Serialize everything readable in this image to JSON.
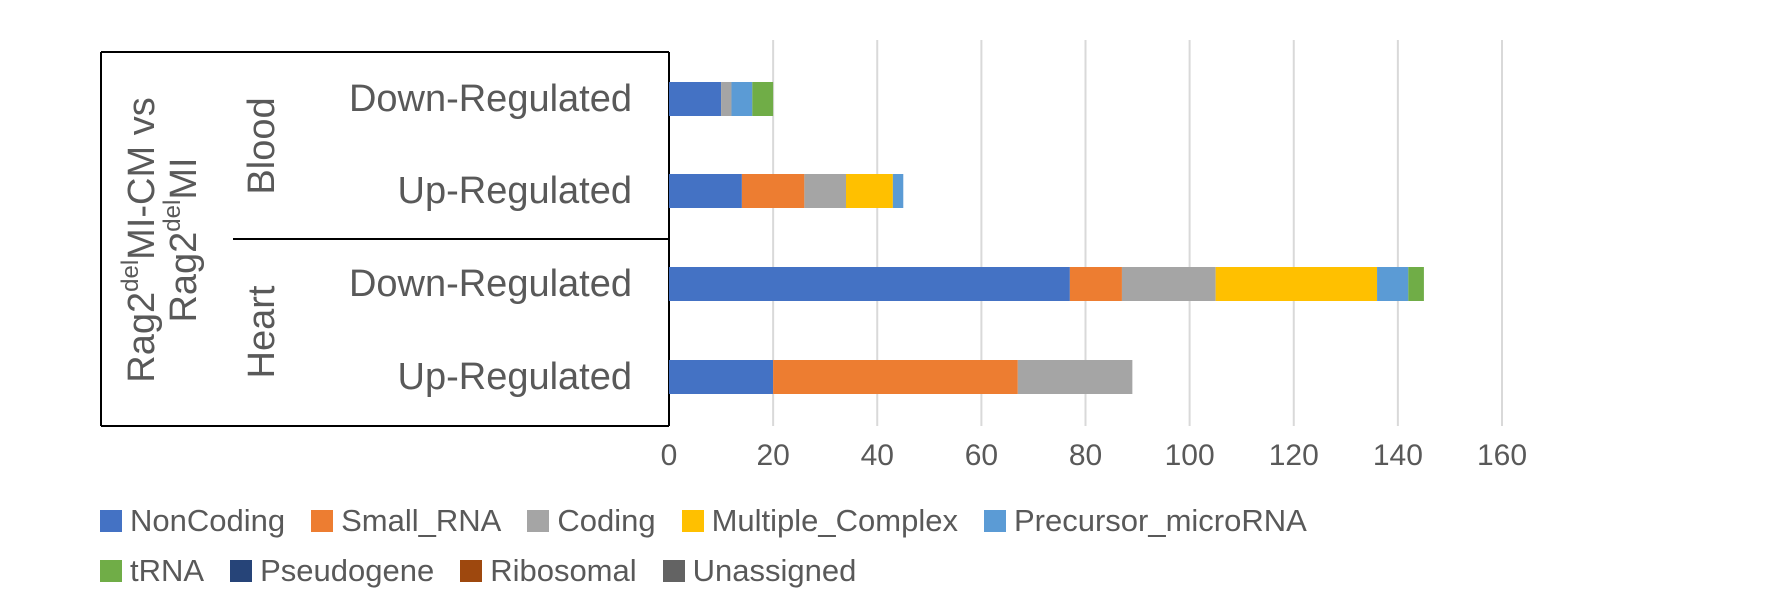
{
  "chart_data": {
    "type": "bar",
    "orientation": "horizontal",
    "stacked": true,
    "group_label": {
      "line1_prefix": "Rag2",
      "line1_sup": "del",
      "line1_suffix": "MI-CM vs",
      "line2_prefix": "Rag2",
      "line2_sup": "del",
      "line2_suffix": "MI"
    },
    "groups": [
      "Blood",
      "Heart"
    ],
    "categories": [
      {
        "label": "Down-Regulated",
        "group": "Blood"
      },
      {
        "label": "Up-Regulated",
        "group": "Blood"
      },
      {
        "label": "Down-Regulated",
        "group": "Heart"
      },
      {
        "label": "Up-Regulated",
        "group": "Heart"
      }
    ],
    "series": [
      {
        "name": "NonCoding",
        "color": "#4472C4",
        "values": [
          10,
          14,
          77,
          20
        ]
      },
      {
        "name": "Small_RNA",
        "color": "#ED7D31",
        "values": [
          0,
          12,
          10,
          47
        ]
      },
      {
        "name": "Coding",
        "color": "#A5A5A5",
        "values": [
          2,
          8,
          18,
          22
        ]
      },
      {
        "name": "Multiple_Complex",
        "color": "#FFC000",
        "values": [
          0,
          9,
          31,
          0
        ]
      },
      {
        "name": "Precursor_microRNA",
        "color": "#5B9BD5",
        "values": [
          4,
          2,
          6,
          0
        ]
      },
      {
        "name": "tRNA",
        "color": "#70AD47",
        "values": [
          4,
          0,
          3,
          0
        ]
      },
      {
        "name": "Pseudogene",
        "color": "#264478",
        "values": [
          0,
          0,
          0,
          0
        ]
      },
      {
        "name": "Ribosomal",
        "color": "#9E480E",
        "values": [
          0,
          0,
          0,
          0
        ]
      },
      {
        "name": "Unassigned",
        "color": "#636363",
        "values": [
          0,
          0,
          0,
          0
        ]
      }
    ],
    "xlim": [
      0,
      160
    ],
    "xticks": [
      0,
      20,
      40,
      60,
      80,
      100,
      120,
      140,
      160
    ],
    "grid": true,
    "legend_position": "bottom"
  }
}
